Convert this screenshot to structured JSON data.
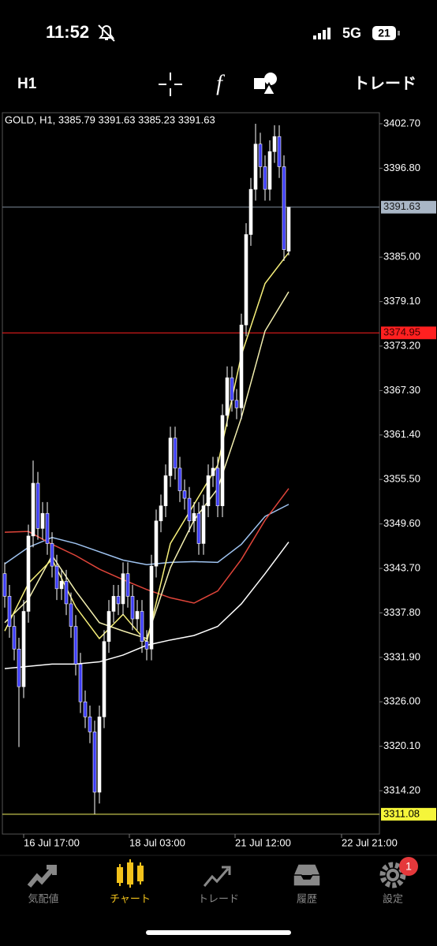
{
  "status_bar": {
    "time": "11:52",
    "network": "5G",
    "battery": "21"
  },
  "toolbar": {
    "timeframe": "H1",
    "trade": "トレード"
  },
  "chart_data": {
    "type": "candlestick",
    "title": "GOLD, H1, 3385.79 3391.63 3385.23 3391.63",
    "open": [
      3343,
      3340,
      3336,
      3333,
      3328,
      3338,
      3348,
      3355,
      3349,
      3351,
      3347,
      3344,
      3341,
      3342,
      3339,
      3336,
      3331,
      3326,
      3324,
      3322,
      3314,
      3324,
      3334,
      3338,
      3340,
      3339,
      3343,
      3340,
      3337,
      3338,
      3334,
      3333,
      3344,
      3350,
      3352,
      3356,
      3361,
      3357,
      3354,
      3353,
      3350,
      3351,
      3347,
      3352,
      3356,
      3357,
      3352,
      3364,
      3369,
      3366,
      3365,
      3376,
      3388,
      3394,
      3400,
      3397,
      3394,
      3399,
      3401,
      3397,
      3385.79
    ],
    "high": [
      3344.5,
      3341.5,
      3337.5,
      3334.5,
      3339.5,
      3349.5,
      3358,
      3356.5,
      3352.5,
      3352.5,
      3348.5,
      3345.5,
      3343.5,
      3343.5,
      3340.5,
      3337.5,
      3332.5,
      3327.5,
      3325.5,
      3323.5,
      3325.5,
      3335.5,
      3339.5,
      3341.5,
      3341.5,
      3344.5,
      3344.5,
      3341.5,
      3339.5,
      3339.5,
      3335.5,
      3345.5,
      3351.5,
      3353.5,
      3357.5,
      3362.5,
      3362.5,
      3358.5,
      3355.5,
      3354.5,
      3352.5,
      3352.5,
      3353.5,
      3357.5,
      3358.5,
      3358.5,
      3365.5,
      3370.5,
      3370.5,
      3367.5,
      3377.5,
      3389.5,
      3395.5,
      3402.7,
      3401.5,
      3398.5,
      3400.5,
      3402.5,
      3402.5,
      3398.5,
      3391.63
    ],
    "low": [
      3338.5,
      3334.5,
      3331.5,
      3320,
      3326.5,
      3336.5,
      3346.5,
      3347.5,
      3347.5,
      3345.5,
      3342.5,
      3339.5,
      3339.5,
      3337.5,
      3334.5,
      3329.5,
      3324.5,
      3322.5,
      3320.5,
      3311.1,
      3312.5,
      3322.5,
      3332.5,
      3336.5,
      3337.5,
      3337.5,
      3338.5,
      3335.5,
      3335.5,
      3332.5,
      3331.5,
      3331.5,
      3342.5,
      3348.5,
      3350.5,
      3354.5,
      3355.5,
      3352.5,
      3351.5,
      3348.5,
      3348.5,
      3345.5,
      3345.5,
      3350.5,
      3354.5,
      3350.5,
      3350.5,
      3362.5,
      3364.5,
      3363.5,
      3363.5,
      3374.5,
      3386.5,
      3392.5,
      3395.5,
      3392.5,
      3392.5,
      3397.5,
      3395.5,
      3384.5,
      3385.23
    ],
    "close": [
      3340,
      3336,
      3333,
      3328,
      3338,
      3348,
      3355,
      3349,
      3351,
      3347,
      3344,
      3341,
      3342,
      3339,
      3336,
      3331,
      3326,
      3324,
      3322,
      3314,
      3324,
      3334,
      3338,
      3340,
      3339,
      3343,
      3340,
      3337,
      3338,
      3334,
      3333,
      3344,
      3350,
      3352,
      3356,
      3361,
      3357,
      3354,
      3353,
      3350,
      3351,
      3347,
      3352,
      3356,
      3357,
      3352,
      3364,
      3369,
      3366,
      3365,
      3376,
      3388,
      3394,
      3400,
      3397,
      3394,
      3399,
      3401,
      3397,
      3386,
      3391.63
    ],
    "up_color": "#ffffff",
    "down_color": "#3b3bf5",
    "overlays": [
      {
        "color": "#ffffff",
        "x": [
          0,
          5,
          10,
          15,
          20,
          25,
          30,
          35,
          40,
          45,
          50,
          55,
          60
        ],
        "values": [
          3330.4,
          3330.7,
          3331,
          3331,
          3331.3,
          3332.2,
          3333.5,
          3334.2,
          3334.8,
          3336,
          3339,
          3343,
          3347.2
        ]
      },
      {
        "color": "#9fc3f0",
        "x": [
          0,
          5,
          10,
          15,
          20,
          25,
          30,
          35,
          40,
          45,
          50,
          55,
          60
        ],
        "values": [
          3344.3,
          3346.5,
          3347.8,
          3347,
          3345.9,
          3344.8,
          3344.2,
          3344.5,
          3344.6,
          3344.5,
          3346.9,
          3350.6,
          3352.2
        ]
      },
      {
        "color": "#e0453a",
        "x": [
          0,
          5,
          10,
          15,
          20,
          25,
          30,
          35,
          40,
          45,
          50,
          55,
          60
        ],
        "values": [
          3348.5,
          3348.6,
          3346.9,
          3345.4,
          3343.6,
          3342.2,
          3340.9,
          3339.8,
          3339.1,
          3340.7,
          3344.9,
          3350.1,
          3354.3
        ]
      },
      {
        "color": "#f3efb0",
        "x": [
          0,
          5,
          10,
          15,
          20,
          25,
          30,
          35,
          40,
          45,
          50,
          55,
          60
        ],
        "values": [
          3336.5,
          3339.6,
          3345.4,
          3340.7,
          3336.5,
          3335.4,
          3334.4,
          3343.8,
          3350.1,
          3354.3,
          3363.7,
          3375.2,
          3380.4
        ]
      },
      {
        "color": "#f7f07a",
        "x": [
          0,
          5,
          10,
          15,
          20,
          25,
          30,
          35,
          40,
          45,
          50,
          55,
          60
        ],
        "values": [
          3335.4,
          3341.7,
          3344.9,
          3338.6,
          3334.4,
          3337.6,
          3333.9,
          3347,
          3352.2,
          3357.4,
          3372,
          3381.5,
          3385.6
        ]
      }
    ],
    "price_lines": [
      {
        "value": 3391.63,
        "label": "3391.63",
        "color": "#7d8a99",
        "bg": "#a9b6c6",
        "fg": "#1a1a1a"
      },
      {
        "value": 3374.95,
        "label": "3374.95",
        "color": "#ff2020",
        "bg": "#ff2020",
        "fg": "#3a0000"
      },
      {
        "value": 3311.08,
        "label": "3311.08",
        "color": "#f0f060",
        "bg": "#f5f53a",
        "fg": "#000000"
      }
    ],
    "ylim": [
      3308.45,
      3404.16
    ],
    "yticks": [
      {
        "value": 3402.7,
        "label": "3402.70"
      },
      {
        "value": 3396.8,
        "label": "3396.80"
      },
      {
        "value": 3385,
        "label": "3385.00"
      },
      {
        "value": 3379.1,
        "label": "3379.10"
      },
      {
        "value": 3373.2,
        "label": "3373.20"
      },
      {
        "value": 3367.3,
        "label": "3367.30"
      },
      {
        "value": 3361.4,
        "label": "3361.40"
      },
      {
        "value": 3355.5,
        "label": "3355.50"
      },
      {
        "value": 3349.6,
        "label": "3349.60"
      },
      {
        "value": 3343.7,
        "label": "3343.70"
      },
      {
        "value": 3337.8,
        "label": "3337.80"
      },
      {
        "value": 3331.9,
        "label": "3331.90"
      },
      {
        "value": 3326,
        "label": "3326.00"
      },
      {
        "value": 3320.1,
        "label": "3320.10"
      },
      {
        "value": 3314.2,
        "label": "3314.20"
      }
    ],
    "xtick_labels": [
      "16 Jul 17:00",
      "18 Jul 03:00",
      "21 Jul 12:00",
      "22 Jul 21:00"
    ]
  },
  "tab_bar": {
    "items": [
      "気配値",
      "チャート",
      "トレード",
      "履歴",
      "設定"
    ],
    "badge": "1"
  }
}
